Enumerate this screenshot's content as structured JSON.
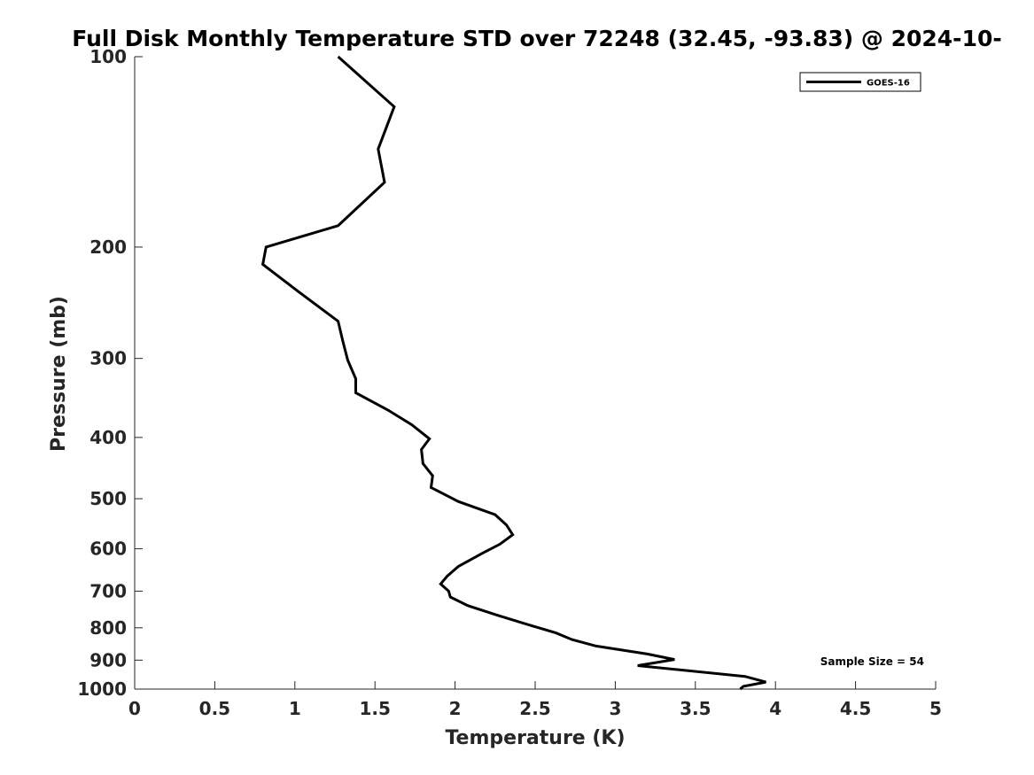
{
  "chart_data": {
    "type": "line",
    "title": "Full Disk Monthly Temperature STD over 72248 (32.45, -93.83) @ 2024-10-",
    "xlabel": "Temperature (K)",
    "ylabel": "Pressure (mb)",
    "xlim": [
      0,
      5
    ],
    "ylim": [
      100,
      1000
    ],
    "y_scale": "log",
    "y_reversed": true,
    "grid": false,
    "legend_position": "top-right",
    "x_ticks": [
      "0",
      "0.5",
      "1",
      "1.5",
      "2",
      "2.5",
      "3",
      "3.5",
      "4",
      "4.5",
      "5"
    ],
    "x_tick_values": [
      0,
      0.5,
      1,
      1.5,
      2,
      2.5,
      3,
      3.5,
      4,
      4.5,
      5
    ],
    "y_ticks": [
      "100",
      "200",
      "300",
      "400",
      "500",
      "600",
      "700",
      "800",
      "900",
      "1000"
    ],
    "y_tick_values": [
      100,
      200,
      300,
      400,
      500,
      600,
      700,
      800,
      900,
      1000
    ],
    "annotation": "Sample Size = 54",
    "series": [
      {
        "name": "GOES-16",
        "color": "#000000",
        "x": [
          1.27,
          1.62,
          1.52,
          1.56,
          1.27,
          0.82,
          0.8,
          1.02,
          1.27,
          1.3,
          1.33,
          1.38,
          1.38,
          1.58,
          1.73,
          1.84,
          1.79,
          1.8,
          1.86,
          1.85,
          2.02,
          2.25,
          2.32,
          2.36,
          2.28,
          2.17,
          2.02,
          1.95,
          1.91,
          1.96,
          1.97,
          2.08,
          2.27,
          2.45,
          2.63,
          2.73,
          2.88,
          3.2,
          3.37,
          3.14,
          3.81,
          3.94,
          3.8,
          3.78
        ],
        "y": [
          100,
          120,
          140,
          158,
          185,
          200,
          213,
          235,
          262,
          282,
          302,
          323,
          340,
          362,
          382,
          402,
          418,
          440,
          460,
          480,
          505,
          530,
          550,
          570,
          590,
          610,
          640,
          663,
          682,
          700,
          715,
          738,
          765,
          790,
          815,
          835,
          855,
          880,
          898,
          918,
          955,
          975,
          990,
          1000
        ]
      }
    ]
  }
}
